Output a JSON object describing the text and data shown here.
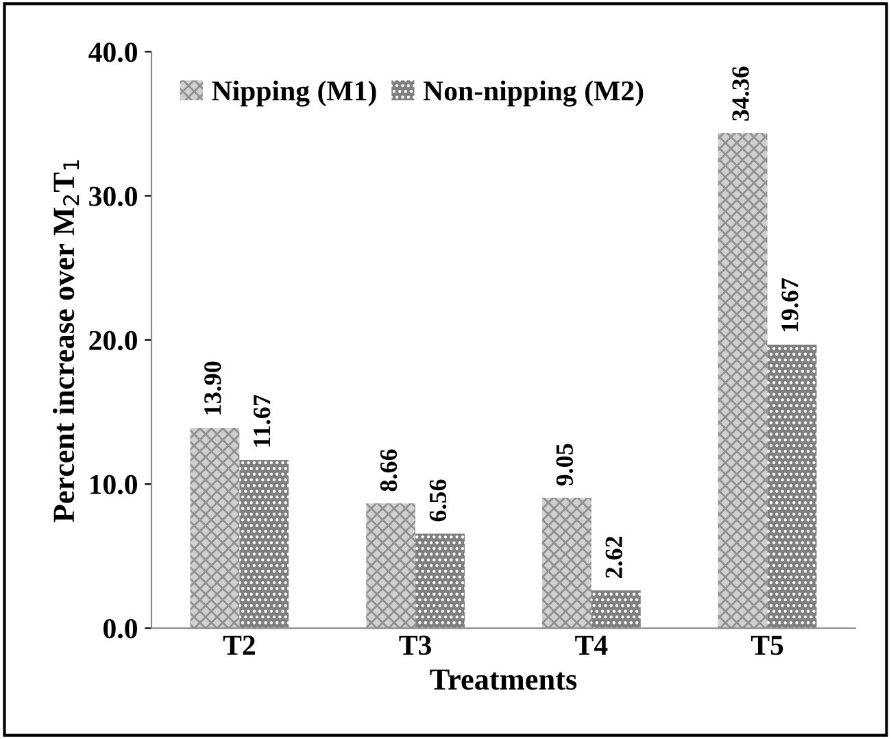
{
  "chart_data": {
    "type": "bar",
    "xlabel": "Treatments",
    "ylabel": "Percent increase over M$_{2}$T$_{1}$",
    "categories": [
      "T2",
      "T3",
      "T4",
      "T5"
    ],
    "series": [
      {
        "name": "Nipping (M1)",
        "color": "#d0d0d0",
        "values": [
          13.9,
          8.66,
          9.05,
          34.36
        ],
        "value_labels": [
          "13.90",
          "8.66",
          "9.05",
          "34.36"
        ]
      },
      {
        "name": "Non-nipping (M2)",
        "color": "#7f7f7f",
        "values": [
          11.67,
          6.56,
          2.62,
          19.67
        ],
        "value_labels": [
          "11.67",
          "6.56",
          "2.62",
          "19.67"
        ]
      }
    ],
    "ylim": [
      0,
      40
    ],
    "yticks": [
      {
        "value": 0,
        "label": "0.0"
      },
      {
        "value": 10,
        "label": "10.0"
      },
      {
        "value": 20,
        "label": "20.0"
      },
      {
        "value": 30,
        "label": "30.0"
      },
      {
        "value": 40,
        "label": "40.0"
      }
    ],
    "grid": false,
    "legend": "top left"
  }
}
